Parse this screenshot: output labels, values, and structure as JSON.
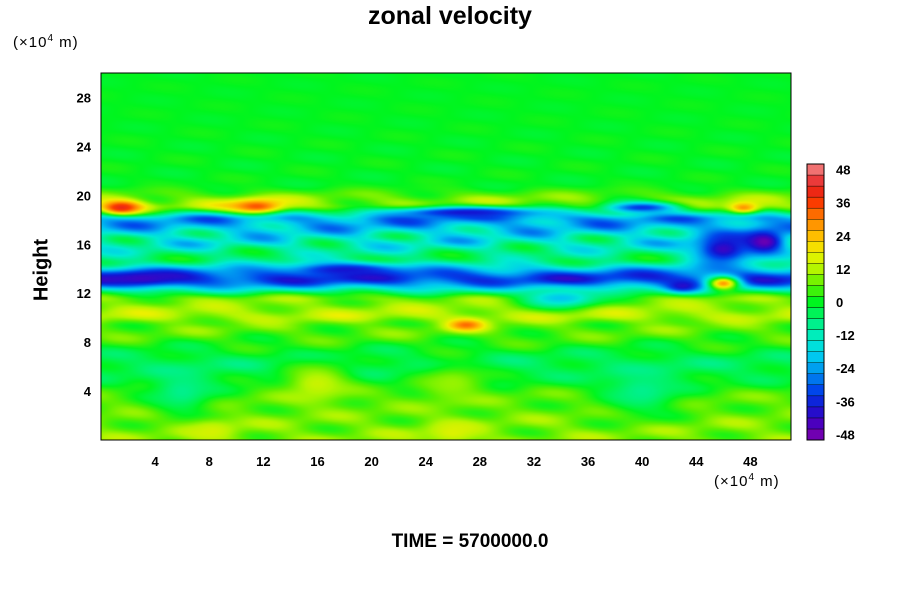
{
  "chart_data": {
    "type": "heatmap",
    "title": "zonal velocity",
    "ylabel": "Height",
    "xlabel": "",
    "x_unit": {
      "prefix": "(×10",
      "exp": "4",
      "suffix": " m)"
    },
    "y_unit": {
      "prefix": "(×10",
      "exp": "4",
      "suffix": " m)"
    },
    "xlim": [
      0,
      51
    ],
    "ylim": [
      0,
      30
    ],
    "x_ticks": [
      4,
      8,
      12,
      16,
      20,
      24,
      28,
      32,
      36,
      40,
      44,
      48
    ],
    "y_ticks": [
      4,
      8,
      12,
      16,
      20,
      24,
      28
    ],
    "colorbar": {
      "range": [
        -50,
        50
      ],
      "step": 4,
      "labels": [
        48,
        36,
        24,
        12,
        0,
        -12,
        -24,
        -36,
        -48
      ]
    },
    "layers": [
      {
        "y": 28.0,
        "value": 0,
        "amp": 1,
        "note": ""
      },
      {
        "y": 21.0,
        "value": 0,
        "amp": 2
      },
      {
        "y": 19.2,
        "value": 10,
        "amp": 8
      },
      {
        "y": 18.0,
        "value": -24,
        "amp": 10
      },
      {
        "y": 16.4,
        "value": -14,
        "amp": 12
      },
      {
        "y": 14.8,
        "value": -6,
        "amp": 8
      },
      {
        "y": 13.2,
        "value": -34,
        "amp": 8
      },
      {
        "y": 11.4,
        "value": 8,
        "amp": 6
      },
      {
        "y": 10.2,
        "value": 12,
        "amp": 6
      },
      {
        "y": 9.3,
        "value": 6,
        "amp": 6
      },
      {
        "y": 6.0,
        "value": -4,
        "amp": 4
      },
      {
        "y": 3.0,
        "value": 6,
        "amp": 5
      },
      {
        "y": 0.5,
        "value": 8,
        "amp": 6
      }
    ],
    "features": [
      {
        "x": 1.5,
        "y": 19.0,
        "value": 40,
        "sx": 1.6,
        "sy": 0.6
      },
      {
        "x": 11.5,
        "y": 19.1,
        "value": 34,
        "sx": 2.0,
        "sy": 0.6
      },
      {
        "x": 27.0,
        "y": 9.4,
        "value": 32,
        "sx": 1.4,
        "sy": 0.5
      },
      {
        "x": 47.5,
        "y": 19.0,
        "value": 28,
        "sx": 1.2,
        "sy": 0.5
      },
      {
        "x": 46.0,
        "y": 12.8,
        "value": 28,
        "sx": 1.2,
        "sy": 0.6
      },
      {
        "x": 49.0,
        "y": 16.2,
        "value": -48,
        "sx": 1.6,
        "sy": 1.0
      },
      {
        "x": 46.0,
        "y": 15.6,
        "value": -42,
        "sx": 2.2,
        "sy": 1.3
      },
      {
        "x": 43.0,
        "y": 12.6,
        "value": -40,
        "sx": 1.2,
        "sy": 0.5
      },
      {
        "x": 3.0,
        "y": 13.2,
        "value": -42,
        "sx": 3.0,
        "sy": 0.6
      },
      {
        "x": 18.0,
        "y": 13.9,
        "value": -38,
        "sx": 4.0,
        "sy": 0.6
      },
      {
        "x": 27.0,
        "y": 18.6,
        "value": -38,
        "sx": 6.0,
        "sy": 0.5
      },
      {
        "x": 40.0,
        "y": 19.0,
        "value": -34,
        "sx": 3.0,
        "sy": 0.5
      },
      {
        "x": 16.0,
        "y": 4.6,
        "value": 14,
        "sx": 2.5,
        "sy": 1.6
      },
      {
        "x": 26.0,
        "y": 4.6,
        "value": 10,
        "sx": 2.5,
        "sy": 1.6
      },
      {
        "x": 8.0,
        "y": 0.8,
        "value": 16,
        "sx": 2.0,
        "sy": 1.0
      },
      {
        "x": 26.0,
        "y": 0.6,
        "value": 16,
        "sx": 2.0,
        "sy": 1.0
      },
      {
        "x": 6.0,
        "y": 4.0,
        "value": -8,
        "sx": 2.5,
        "sy": 2.0
      },
      {
        "x": 40.0,
        "y": 4.0,
        "value": -8,
        "sx": 3.0,
        "sy": 2.0
      },
      {
        "x": 34.0,
        "y": 11.6,
        "value": -20,
        "sx": 3.0,
        "sy": 0.8
      }
    ]
  },
  "footer": {
    "time_label": "TIME = 5700000.0"
  }
}
